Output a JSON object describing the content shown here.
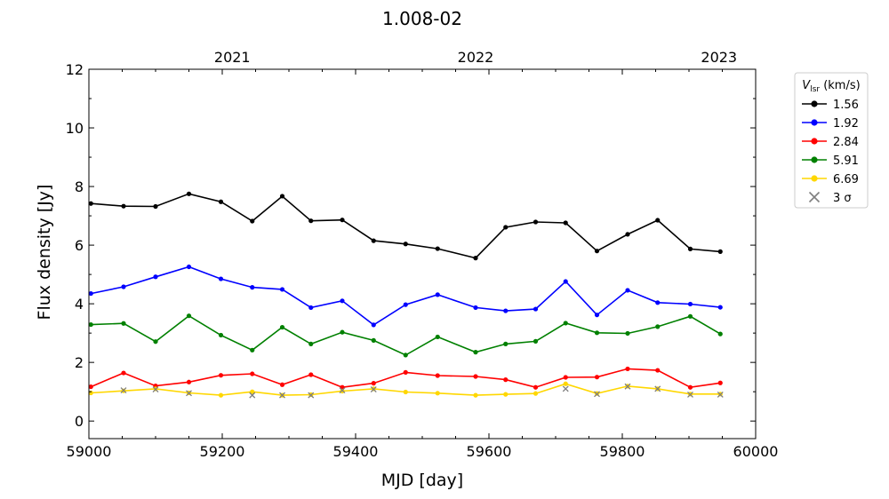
{
  "chart_data": {
    "type": "line",
    "title": "1.008-02",
    "xlabel": "MJD [day]",
    "ylabel": "Flux density [Jy]",
    "xlim": [
      59000,
      60000
    ],
    "ylim": [
      -0.6,
      12
    ],
    "x_ticks": [
      59000,
      59200,
      59400,
      59600,
      59800,
      60000
    ],
    "y_ticks": [
      0,
      2,
      4,
      6,
      8,
      10,
      12
    ],
    "top_axis": {
      "labels": [
        "2021",
        "2022",
        "2023"
      ],
      "mjd": [
        59215,
        59580,
        59945
      ]
    },
    "grid": false,
    "legend": {
      "placement": "outside-right",
      "title_main": "V",
      "title_sub": "lsr",
      "title_unit": " (km/s)",
      "sigma_label": "3 σ"
    },
    "x": [
      59003,
      59052,
      59100,
      59150,
      59198,
      59245,
      59290,
      59333,
      59380,
      59427,
      59475,
      59523,
      59580,
      59625,
      59670,
      59715,
      59762,
      59808,
      59853,
      59902,
      59947
    ],
    "series": [
      {
        "name": "1.56",
        "color": "#000000",
        "values": [
          7.42,
          7.33,
          7.32,
          7.75,
          7.48,
          6.82,
          7.67,
          6.83,
          6.86,
          6.15,
          6.04,
          5.88,
          5.56,
          6.61,
          6.79,
          6.76,
          5.8,
          6.37,
          6.85,
          5.87,
          5.78
        ]
      },
      {
        "name": "1.92",
        "color": "#0000ff",
        "values": [
          4.35,
          4.58,
          4.92,
          5.26,
          4.85,
          4.56,
          4.49,
          3.87,
          4.1,
          3.28,
          3.97,
          4.31,
          3.87,
          3.76,
          3.82,
          4.76,
          3.62,
          4.46,
          4.04,
          3.99,
          3.88
        ]
      },
      {
        "name": "2.84",
        "color": "#ff0000",
        "values": [
          1.17,
          1.64,
          1.2,
          1.33,
          1.56,
          1.61,
          1.24,
          1.58,
          1.15,
          1.29,
          1.66,
          1.55,
          1.52,
          1.41,
          1.15,
          1.49,
          1.5,
          1.78,
          1.73,
          1.15,
          1.3
        ]
      },
      {
        "name": "5.91",
        "color": "#008000",
        "values": [
          3.29,
          3.33,
          2.71,
          3.59,
          2.93,
          2.42,
          3.2,
          2.63,
          3.03,
          2.75,
          2.25,
          2.87,
          2.35,
          2.63,
          2.72,
          3.34,
          3.01,
          2.99,
          3.22,
          3.57,
          2.97
        ]
      },
      {
        "name": "6.69",
        "color": "#ffd700",
        "values": [
          0.96,
          1.03,
          1.1,
          0.96,
          0.88,
          1.0,
          0.88,
          0.9,
          1.02,
          1.1,
          0.99,
          0.95,
          0.88,
          0.91,
          0.94,
          1.27,
          0.94,
          1.19,
          1.1,
          0.92,
          0.92
        ]
      }
    ],
    "sigma3": {
      "color": "#7f7f7f",
      "x": [
        59052,
        59100,
        59150,
        59245,
        59290,
        59333,
        59380,
        59427,
        59715,
        59762,
        59808,
        59853,
        59902,
        59947
      ],
      "values": [
        1.05,
        1.08,
        0.95,
        0.88,
        0.88,
        0.88,
        1.05,
        1.08,
        1.1,
        0.92,
        1.18,
        1.1,
        0.9,
        0.9
      ]
    }
  }
}
